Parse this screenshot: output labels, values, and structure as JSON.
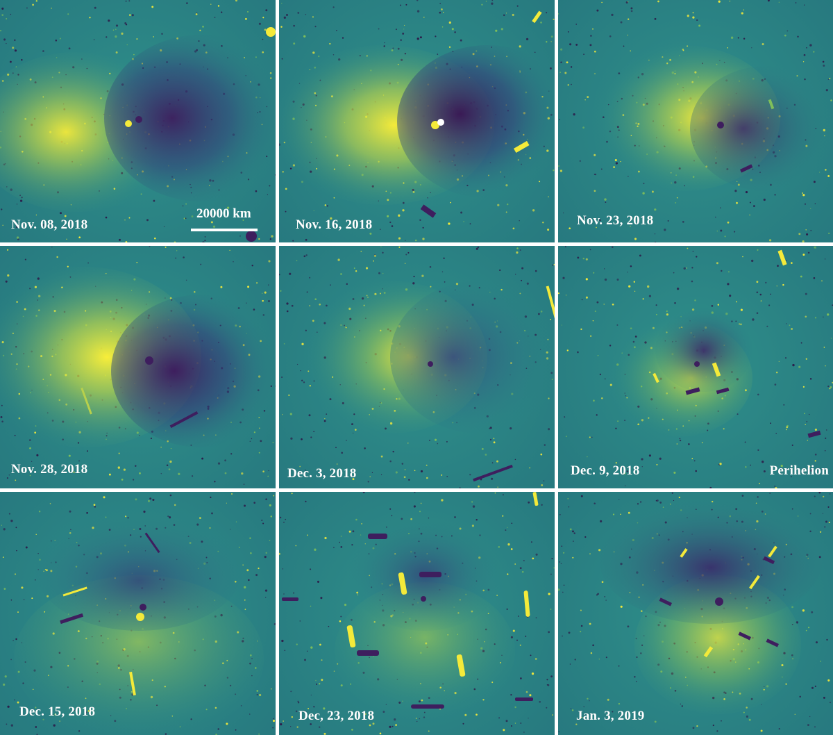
{
  "colors": {
    "background": "#2a8a86",
    "bright": "#f4ea3a",
    "dark": "#3e1e5e",
    "separator": "#ffffff",
    "text": "#ffffff"
  },
  "scale_bar": {
    "label": "20000 km"
  },
  "panels": [
    {
      "date": "Nov. 08, 2018",
      "extra_label": ""
    },
    {
      "date": "Nov. 16, 2018",
      "extra_label": ""
    },
    {
      "date": "Nov. 23, 2018",
      "extra_label": ""
    },
    {
      "date": "Nov. 28, 2018",
      "extra_label": ""
    },
    {
      "date": "Dec. 3, 2018",
      "extra_label": ""
    },
    {
      "date": "Dec. 9, 2018",
      "extra_label": "Perihelion"
    },
    {
      "date": "Dec. 15, 2018",
      "extra_label": ""
    },
    {
      "date": "Dec, 23, 2018",
      "extra_label": ""
    },
    {
      "date": "Jan. 3, 2019",
      "extra_label": ""
    }
  ]
}
